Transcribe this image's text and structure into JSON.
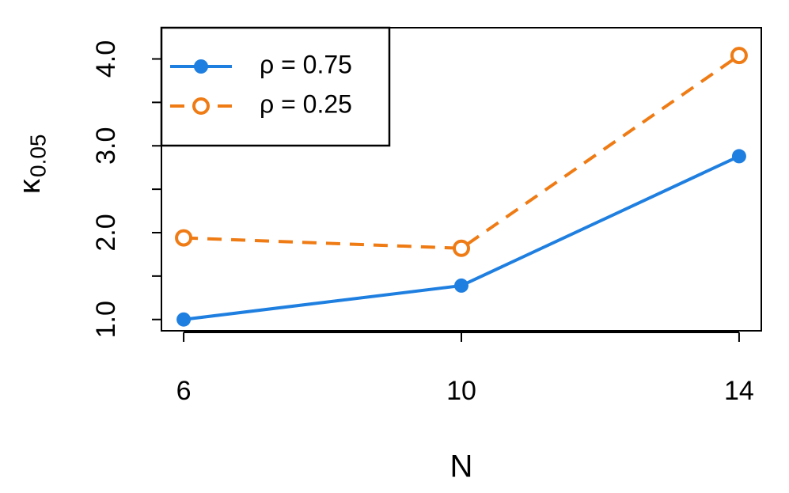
{
  "chart_data": {
    "type": "line",
    "xlabel": "N",
    "ylabel": "κ",
    "ylabel_subscript": "0.05",
    "x": [
      6,
      10,
      14
    ],
    "series": [
      {
        "name": "ρ = 0.75",
        "color": "#1f7fe0",
        "dash": false,
        "marker": "filled",
        "values": [
          1.0,
          1.39,
          2.88
        ]
      },
      {
        "name": "ρ = 0.25",
        "color": "#ef7b14",
        "dash": true,
        "marker": "open",
        "values": [
          1.94,
          1.82,
          4.04
        ]
      }
    ],
    "xlim": [
      5.68,
      14.32
    ],
    "xticks": [
      6,
      10,
      14
    ],
    "ylim": [
      0.87,
      4.36
    ],
    "yticks": [
      {
        "value": 1,
        "label": "1.0"
      },
      {
        "value": 1.5,
        "label": null
      },
      {
        "value": 2,
        "label": "2.0"
      },
      {
        "value": 2.5,
        "label": null
      },
      {
        "value": 3,
        "label": "3.0"
      },
      {
        "value": 3.5,
        "label": null
      },
      {
        "value": 4,
        "label": "4.0"
      }
    ],
    "legend": "top-left"
  }
}
